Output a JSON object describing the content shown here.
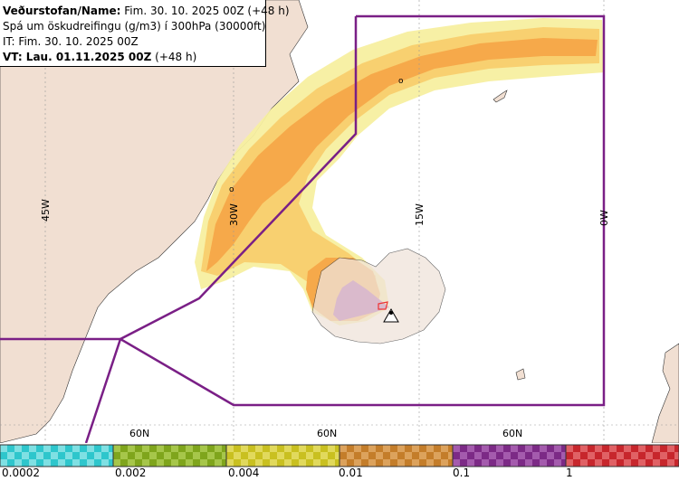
{
  "header": {
    "org": "Veðurstofan/Name:",
    "org_value": "Fim. 30. 10. 2025 00Z (+48 h)",
    "forecast": "Spá um öskudreifingu (g/m3) í 300hPa (30000ft)",
    "it": "IT: Fim. 30. 10. 2025 00Z",
    "vt": "VT: Lau. 01.11.2025 00Z",
    "vt_extra": "(+48 h)"
  },
  "map": {
    "lon_labels": [
      "45W",
      "30W",
      "15W",
      "0W"
    ],
    "lat_labels": [
      "60N",
      "60N",
      "60N"
    ],
    "point_labels": [
      "o",
      "o"
    ]
  },
  "legend": {
    "ticks": [
      "0.0002",
      "0.002",
      "0.004",
      "0.01",
      "0.1",
      "1"
    ],
    "bins": [
      {
        "color": "#2ec6cc",
        "alt": "#7fe0e3",
        "icon": "cyan-bin"
      },
      {
        "color": "#7fa51c",
        "alt": "#a6c64a",
        "icon": "olive-bin"
      },
      {
        "color": "#c9c020",
        "alt": "#e1d95c",
        "icon": "yellow-bin"
      },
      {
        "color": "#c47d2a",
        "alt": "#dca25c",
        "icon": "orange-bin"
      },
      {
        "color": "#7c2a86",
        "alt": "#a45bad",
        "icon": "purple-bin"
      },
      {
        "color": "#c7262c",
        "alt": "#e06165",
        "icon": "red-bin"
      }
    ]
  },
  "colors": {
    "land": "#f1dfd2",
    "boundary": "#7a1f86",
    "plume_light": "#f8f0a0",
    "plume_mid": "#f8d070",
    "plume_orange": "#f6a94a",
    "plume_purple": "#9b3fa4"
  }
}
